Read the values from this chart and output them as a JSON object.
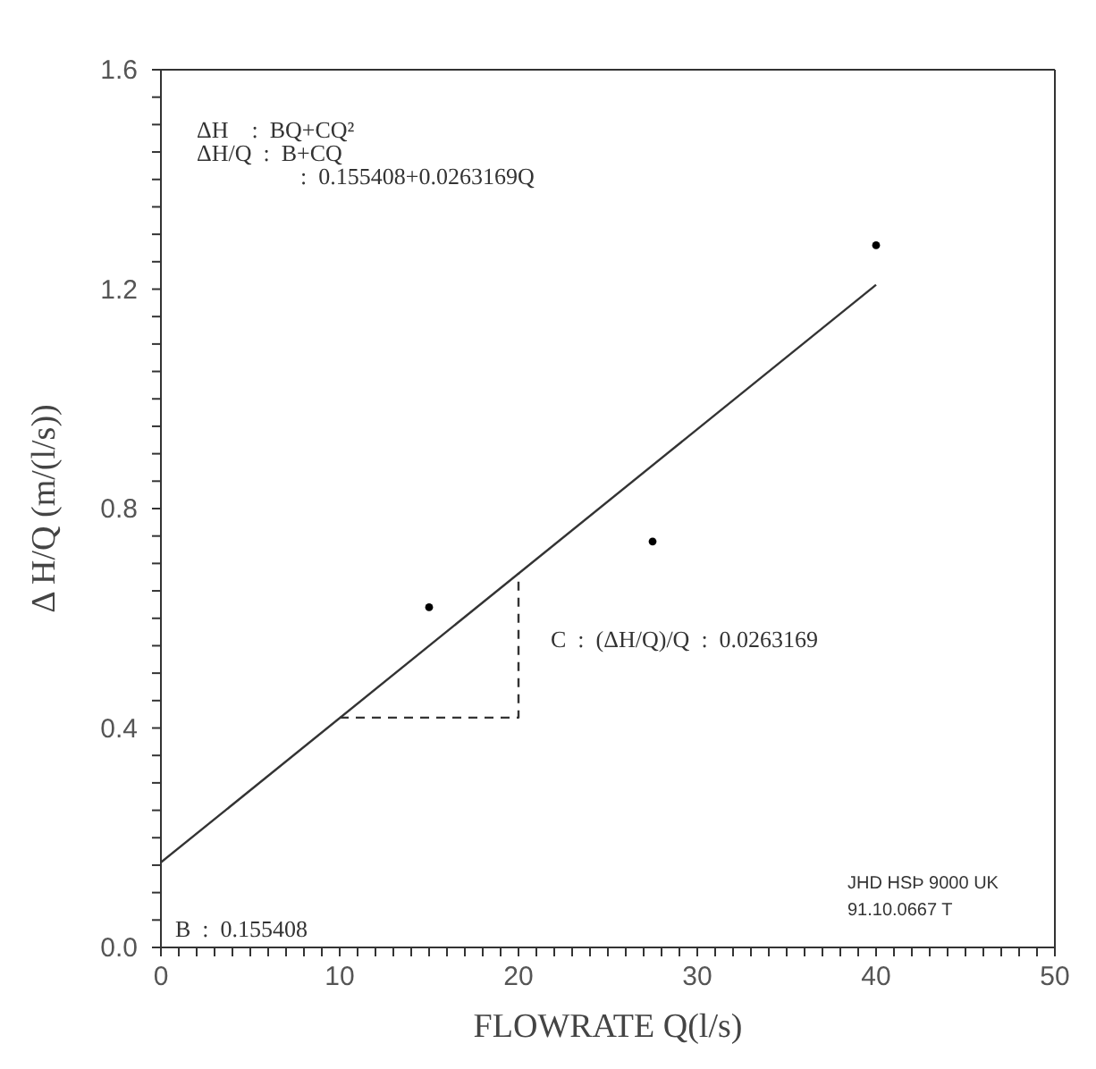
{
  "chart_data": {
    "type": "scatter",
    "xlabel": "FLOWRATE  Q(l/s)",
    "ylabel": "Δ H/Q  (m/(l/s))",
    "xlim": [
      0,
      50
    ],
    "ylim": [
      0,
      1.6
    ],
    "xticks": [
      0,
      {
        "value": 1,
        "label": null
      },
      {
        "value": 2,
        "label": null
      },
      {
        "value": 3,
        "label": null
      },
      {
        "value": 4,
        "label": null
      },
      {
        "value": 5,
        "label": null
      },
      {
        "value": 6,
        "label": null
      },
      {
        "value": 7,
        "label": null
      },
      {
        "value": 8,
        "label": null
      },
      {
        "value": 9,
        "label": null
      },
      10,
      {
        "value": 11,
        "label": null
      },
      {
        "value": 12,
        "label": null
      },
      {
        "value": 13,
        "label": null
      },
      {
        "value": 14,
        "label": null
      },
      {
        "value": 15,
        "label": null
      },
      {
        "value": 16,
        "label": null
      },
      {
        "value": 17,
        "label": null
      },
      {
        "value": 18,
        "label": null
      },
      {
        "value": 19,
        "label": null
      },
      20,
      {
        "value": 21,
        "label": null
      },
      {
        "value": 22,
        "label": null
      },
      {
        "value": 23,
        "label": null
      },
      {
        "value": 24,
        "label": null
      },
      {
        "value": 25,
        "label": null
      },
      {
        "value": 26,
        "label": null
      },
      {
        "value": 27,
        "label": null
      },
      {
        "value": 28,
        "label": null
      },
      {
        "value": 29,
        "label": null
      },
      30,
      {
        "value": 31,
        "label": null
      },
      {
        "value": 32,
        "label": null
      },
      {
        "value": 33,
        "label": null
      },
      {
        "value": 34,
        "label": null
      },
      {
        "value": 35,
        "label": null
      },
      {
        "value": 36,
        "label": null
      },
      {
        "value": 37,
        "label": null
      },
      {
        "value": 38,
        "label": null
      },
      {
        "value": 39,
        "label": null
      },
      40,
      {
        "value": 41,
        "label": null
      },
      {
        "value": 42,
        "label": null
      },
      {
        "value": 43,
        "label": null
      },
      {
        "value": 44,
        "label": null
      },
      {
        "value": 45,
        "label": null
      },
      {
        "value": 46,
        "label": null
      },
      {
        "value": 47,
        "label": null
      },
      {
        "value": 48,
        "label": null
      },
      {
        "value": 49,
        "label": null
      },
      50
    ],
    "yticks": [
      {
        "value": 0,
        "label": "0.0"
      },
      {
        "value": 0.05,
        "label": null
      },
      {
        "value": 0.1,
        "label": null
      },
      {
        "value": 0.15,
        "label": null
      },
      {
        "value": 0.2,
        "label": null
      },
      {
        "value": 0.25,
        "label": null
      },
      {
        "value": 0.3,
        "label": null
      },
      {
        "value": 0.35,
        "label": null
      },
      {
        "value": 0.4,
        "label": "0.4"
      },
      {
        "value": 0.45,
        "label": null
      },
      {
        "value": 0.5,
        "label": null
      },
      {
        "value": 0.55,
        "label": null
      },
      {
        "value": 0.6,
        "label": null
      },
      {
        "value": 0.65,
        "label": null
      },
      {
        "value": 0.7,
        "label": null
      },
      {
        "value": 0.75,
        "label": null
      },
      {
        "value": 0.8,
        "label": "0.8"
      },
      {
        "value": 0.85,
        "label": null
      },
      {
        "value": 0.9,
        "label": null
      },
      {
        "value": 0.95,
        "label": null
      },
      {
        "value": 1.0,
        "label": null
      },
      {
        "value": 1.05,
        "label": null
      },
      {
        "value": 1.1,
        "label": null
      },
      {
        "value": 1.15,
        "label": null
      },
      {
        "value": 1.2,
        "label": "1.2"
      },
      {
        "value": 1.25,
        "label": null
      },
      {
        "value": 1.3,
        "label": null
      },
      {
        "value": 1.35,
        "label": null
      },
      {
        "value": 1.4,
        "label": null
      },
      {
        "value": 1.45,
        "label": null
      },
      {
        "value": 1.5,
        "label": null
      },
      {
        "value": 1.55,
        "label": null
      },
      {
        "value": 1.6,
        "label": "1.6"
      }
    ],
    "grid": false,
    "legend": false,
    "series": [
      {
        "x": [
          15,
          27.5,
          40
        ],
        "values": [
          0.62,
          0.74,
          1.28
        ],
        "color": "#000000",
        "marker": "circle"
      },
      {
        "type": "line",
        "x": [
          0,
          40
        ],
        "values": [
          0.155,
          1.208
        ],
        "color": "#333333",
        "marker": "none",
        "line_style": "solid"
      },
      {
        "type": "line",
        "x": [
          10,
          20,
          20
        ],
        "values": [
          0.419,
          0.419,
          0.682
        ],
        "color": "#333333",
        "marker": "none",
        "line_style": "dashed"
      }
    ],
    "annotations": [
      "ΔH    :  BQ+CQ²",
      "ΔH/Q  :  B+CQ",
      ":  0.155408+0.0263169Q",
      "C  :  (ΔH/Q)/Q  :  0.0263169",
      "B  :  0.155408",
      "JHD HSÞ 9000 UK",
      "91.10.0667 T"
    ]
  }
}
